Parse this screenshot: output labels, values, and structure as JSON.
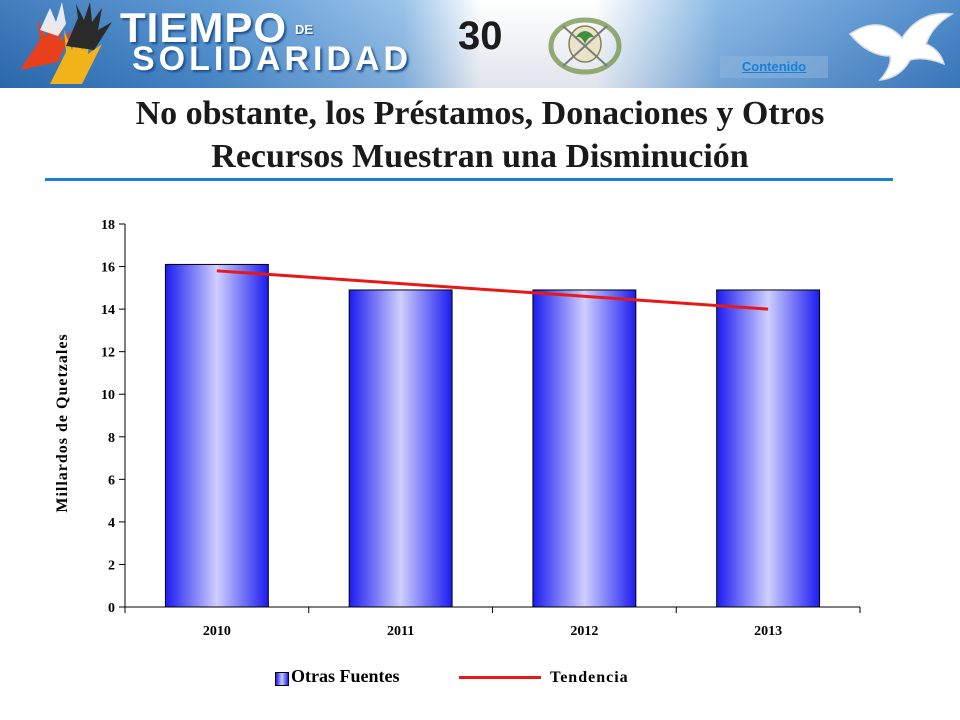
{
  "header": {
    "brand_line1": "TIEMPO",
    "brand_de": "DE",
    "brand_line2": "SOLIDARIDAD",
    "slide_number": "30",
    "contents_link": "Contenido"
  },
  "slide": {
    "title_line1": "No obstante, los Préstamos, Donaciones y Otros",
    "title_line2": "Recursos Muestran una Disminución"
  },
  "chart_data": {
    "type": "bar",
    "categories": [
      "2010",
      "2011",
      "2012",
      "2013"
    ],
    "series": [
      {
        "name": "Otras Fuentes",
        "values": [
          16.1,
          14.9,
          14.9,
          14.9
        ]
      }
    ],
    "trend": {
      "name": "Tendencia",
      "start": 15.8,
      "end": 14.0
    },
    "ylabel": "Millardos de Quetzales",
    "ylim": [
      0,
      18
    ],
    "yticks": [
      0,
      2,
      4,
      6,
      8,
      10,
      12,
      14,
      16,
      18
    ],
    "grid": false,
    "legend_position": "bottom",
    "colors": {
      "bar_edge": "#1c1cf0",
      "bar_center": "#cfcfff",
      "trend": "#e81818"
    }
  }
}
